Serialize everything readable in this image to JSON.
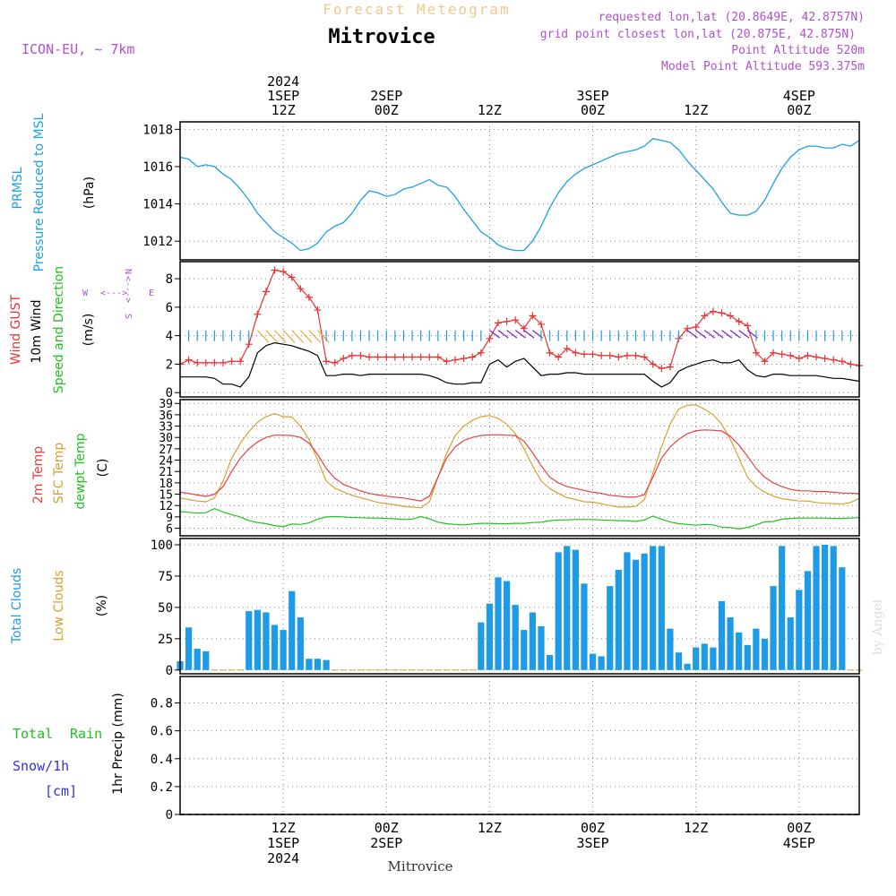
{
  "header": {
    "top_title": "Forecast Meteogram",
    "place": "Mitrovice",
    "model": "ICON-EU, ~ 7km",
    "requested": "requested lon,lat (20.8649E, 42.8757N)",
    "gridpoint": "grid point closest lon,lat (20.875E, 42.875N)",
    "point_alt": "Point Altitude 520m",
    "model_alt": "Model Point Altitude 593.375m",
    "credit": "by Angel",
    "footer_place": "Mitrovice"
  },
  "time_axis": {
    "top_labels": [
      {
        "h": 12,
        "lines": [
          "2024",
          "1SEP",
          "12Z"
        ]
      },
      {
        "h": 24,
        "lines": [
          "2SEP",
          "00Z"
        ]
      },
      {
        "h": 36,
        "lines": [
          "12Z"
        ]
      },
      {
        "h": 48,
        "lines": [
          "3SEP",
          "00Z"
        ]
      },
      {
        "h": 60,
        "lines": [
          "12Z"
        ]
      },
      {
        "h": 72,
        "lines": [
          "4SEP",
          "00Z"
        ]
      }
    ],
    "bottom_labels": [
      {
        "h": 12,
        "lines": [
          "12Z",
          "1SEP",
          "2024"
        ]
      },
      {
        "h": 24,
        "lines": [
          "00Z",
          "2SEP"
        ]
      },
      {
        "h": 36,
        "lines": [
          "12Z"
        ]
      },
      {
        "h": 48,
        "lines": [
          "00Z",
          "3SEP"
        ]
      },
      {
        "h": 60,
        "lines": [
          "12Z"
        ]
      },
      {
        "h": 72,
        "lines": [
          "00Z",
          "4SEP"
        ]
      }
    ]
  },
  "labels": {
    "p1": {
      "a": "PRMSL",
      "b": "Pressure Reduced to MSL",
      "unit": "(hPa)"
    },
    "p2": {
      "a": "Wind GUST",
      "b": "10m Wind",
      "c": "Speed and Direction",
      "unit": "(m/s)",
      "n": "N",
      "s": "S",
      "w": "W",
      "e": "E",
      "arrow_h": "<--->",
      "arrow_v": "<--->"
    },
    "p3": {
      "a": "2m Temp",
      "b": "SFC Temp",
      "c": "dewpt Temp",
      "unit": "(C)"
    },
    "p4": {
      "a": "Total Clouds",
      "b": "Low Clouds",
      "unit": "(%)"
    },
    "p5": {
      "a": "Total",
      "b": "Rain",
      "c": "Snow/1h",
      "d": "[cm]",
      "unit": "1hr Precip (mm)"
    }
  },
  "colors": {
    "pressure": "#1ea0e6",
    "gust": "#e83232",
    "wind": "#000000",
    "t2m": "#e84040",
    "sfc": "#d8a030",
    "dew": "#20c020",
    "cloud": "#1e9be6",
    "lowcloud": "#d8a030",
    "grid": "#888888",
    "purple": "#b050d0",
    "rain": "#20c020",
    "snow": "#3030e0",
    "title_faint": "#f0c890"
  },
  "chart_data": [
    {
      "type": "line",
      "name": "pressure",
      "title": "PRMSL Pressure Reduced to MSL",
      "ylabel": "(hPa)",
      "ylim": [
        1011,
        1018.4
      ],
      "yticks": [
        1012,
        1014,
        1016,
        1018
      ],
      "x_hours": [
        0,
        1,
        2,
        3,
        4,
        5,
        6,
        7,
        8,
        9,
        10,
        11,
        12,
        13,
        14,
        15,
        16,
        17,
        18,
        19,
        20,
        21,
        22,
        23,
        24,
        25,
        26,
        27,
        28,
        29,
        30,
        31,
        32,
        33,
        34,
        35,
        36,
        37,
        38,
        39,
        40,
        41,
        42,
        43,
        44,
        45,
        46,
        47,
        48,
        49,
        50,
        51,
        52,
        53,
        54,
        55,
        56,
        57,
        58,
        59,
        60,
        61,
        62,
        63,
        64,
        65,
        66,
        67,
        68,
        69,
        70,
        71,
        72,
        73,
        74,
        75,
        76,
        77,
        78,
        79
      ],
      "values": [
        1016.5,
        1016.4,
        1016.0,
        1016.1,
        1016.0,
        1015.6,
        1015.3,
        1014.8,
        1014.2,
        1013.5,
        1013.0,
        1012.5,
        1012.2,
        1011.9,
        1011.5,
        1011.6,
        1011.9,
        1012.5,
        1012.8,
        1013.0,
        1013.5,
        1014.2,
        1014.7,
        1014.6,
        1014.4,
        1014.5,
        1014.8,
        1014.9,
        1015.1,
        1015.3,
        1015.0,
        1014.9,
        1014.4,
        1013.7,
        1013.1,
        1012.5,
        1012.2,
        1011.8,
        1011.6,
        1011.5,
        1011.5,
        1012.0,
        1012.8,
        1013.8,
        1014.6,
        1015.2,
        1015.6,
        1015.9,
        1016.1,
        1016.3,
        1016.5,
        1016.7,
        1016.8,
        1016.9,
        1017.1,
        1017.5,
        1017.4,
        1017.3,
        1016.9,
        1016.3,
        1015.8,
        1015.3,
        1014.8,
        1014.1,
        1013.5,
        1013.4,
        1013.4,
        1013.6,
        1014.2,
        1015.1,
        1015.9,
        1016.5,
        1016.9,
        1017.1,
        1017.1,
        1017.0,
        1017.0,
        1017.2,
        1017.1,
        1017.4
      ]
    },
    {
      "type": "line",
      "name": "wind",
      "title": "Wind GUST / 10m Wind Speed and Direction",
      "ylabel": "(m/s)",
      "ylim": [
        -0.3,
        9.2
      ],
      "yticks": [
        0,
        2,
        4,
        6,
        8
      ],
      "x_hours": [
        0,
        1,
        2,
        3,
        4,
        5,
        6,
        7,
        8,
        9,
        10,
        11,
        12,
        13,
        14,
        15,
        16,
        17,
        18,
        19,
        20,
        21,
        22,
        23,
        24,
        25,
        26,
        27,
        28,
        29,
        30,
        31,
        32,
        33,
        34,
        35,
        36,
        37,
        38,
        39,
        40,
        41,
        42,
        43,
        44,
        45,
        46,
        47,
        48,
        49,
        50,
        51,
        52,
        53,
        54,
        55,
        56,
        57,
        58,
        59,
        60,
        61,
        62,
        63,
        64,
        65,
        66,
        67,
        68,
        69,
        70,
        71,
        72,
        73,
        74,
        75,
        76,
        77,
        78,
        79
      ],
      "series": [
        {
          "name": "Wind GUST",
          "values": [
            2.0,
            2.3,
            2.1,
            2.1,
            2.1,
            2.1,
            2.2,
            2.2,
            3.4,
            5.5,
            7.1,
            8.6,
            8.5,
            8.1,
            7.3,
            6.7,
            5.8,
            2.2,
            2.1,
            2.4,
            2.6,
            2.6,
            2.5,
            2.5,
            2.5,
            2.5,
            2.5,
            2.5,
            2.5,
            2.5,
            2.5,
            2.2,
            2.3,
            2.4,
            2.5,
            2.8,
            3.8,
            4.9,
            5.0,
            5.1,
            4.5,
            5.4,
            4.8,
            2.8,
            2.5,
            3.1,
            2.8,
            2.7,
            2.7,
            2.6,
            2.6,
            2.5,
            2.6,
            2.6,
            2.5,
            2.0,
            1.7,
            1.8,
            3.8,
            4.5,
            4.6,
            5.4,
            5.7,
            5.6,
            5.4,
            5.0,
            4.7,
            2.8,
            2.2,
            2.8,
            2.7,
            2.6,
            2.4,
            2.6,
            2.5,
            2.4,
            2.3,
            2.2,
            2.0,
            1.9
          ]
        },
        {
          "name": "10m Wind",
          "values": [
            1.1,
            1.1,
            1.1,
            1.1,
            1.0,
            0.6,
            0.6,
            0.4,
            1.1,
            2.8,
            3.3,
            3.5,
            3.4,
            3.3,
            3.1,
            2.9,
            2.6,
            1.2,
            1.2,
            1.3,
            1.3,
            1.2,
            1.3,
            1.3,
            1.3,
            1.3,
            1.3,
            1.3,
            1.3,
            1.2,
            1.0,
            0.7,
            0.6,
            0.6,
            0.7,
            0.7,
            2.0,
            2.3,
            1.8,
            2.2,
            2.4,
            1.8,
            1.2,
            1.3,
            1.3,
            1.4,
            1.4,
            1.3,
            1.3,
            1.3,
            1.3,
            1.3,
            1.3,
            1.3,
            1.3,
            0.8,
            0.4,
            0.7,
            1.5,
            1.8,
            2.0,
            2.2,
            2.3,
            2.1,
            2.1,
            2.3,
            1.6,
            1.2,
            1.1,
            1.3,
            1.3,
            1.2,
            1.2,
            1.2,
            1.2,
            1.1,
            1.0,
            1.0,
            0.9,
            0.8
          ]
        }
      ]
    },
    {
      "type": "line",
      "name": "temperature",
      "title": "2m Temp / SFC Temp / dewpt Temp",
      "ylabel": "(C)",
      "ylim": [
        4,
        40
      ],
      "yticks": [
        6,
        9,
        12,
        15,
        18,
        21,
        24,
        27,
        30,
        33,
        36,
        39
      ],
      "x_hours": [
        0,
        1,
        2,
        3,
        4,
        5,
        6,
        7,
        8,
        9,
        10,
        11,
        12,
        13,
        14,
        15,
        16,
        17,
        18,
        19,
        20,
        21,
        22,
        23,
        24,
        25,
        26,
        27,
        28,
        29,
        30,
        31,
        32,
        33,
        34,
        35,
        36,
        37,
        38,
        39,
        40,
        41,
        42,
        43,
        44,
        45,
        46,
        47,
        48,
        49,
        50,
        51,
        52,
        53,
        54,
        55,
        56,
        57,
        58,
        59,
        60,
        61,
        62,
        63,
        64,
        65,
        66,
        67,
        68,
        69,
        70,
        71,
        72,
        73,
        74,
        75,
        76,
        77,
        78,
        79
      ],
      "series": [
        {
          "name": "2m Temp",
          "values": [
            15.5,
            15.2,
            14.8,
            14.4,
            15.0,
            17.0,
            21.0,
            24.5,
            27.0,
            28.8,
            30.0,
            30.6,
            30.6,
            30.5,
            30.0,
            28.5,
            25.5,
            21.8,
            19.2,
            17.6,
            16.7,
            15.9,
            15.2,
            14.8,
            14.5,
            14.2,
            14.0,
            13.6,
            13.2,
            14.5,
            19.5,
            24.5,
            27.5,
            29.2,
            30.0,
            30.5,
            30.7,
            30.7,
            30.6,
            30.5,
            29.0,
            26.0,
            22.5,
            19.5,
            18.0,
            17.0,
            16.5,
            16.0,
            15.5,
            15.2,
            14.7,
            14.5,
            14.2,
            14.2,
            14.9,
            19.5,
            24.5,
            27.5,
            29.5,
            31.0,
            31.8,
            32.0,
            31.9,
            31.7,
            30.3,
            28.0,
            25.0,
            21.8,
            19.5,
            18.0,
            17.0,
            16.3,
            15.9,
            15.9,
            15.7,
            15.7,
            15.5,
            15.3,
            15.3,
            15.1
          ]
        },
        {
          "name": "SFC Temp",
          "values": [
            14.0,
            13.6,
            13.2,
            13.0,
            14.0,
            18.5,
            24.5,
            28.5,
            31.5,
            34.0,
            35.5,
            36.3,
            35.5,
            35.4,
            33.0,
            29.5,
            24.0,
            18.5,
            16.6,
            15.6,
            14.7,
            14.1,
            13.5,
            12.8,
            12.5,
            12.2,
            11.8,
            11.6,
            11.4,
            13.0,
            19.5,
            25.8,
            30.5,
            33.0,
            34.5,
            35.5,
            35.8,
            35.0,
            33.5,
            31.0,
            27.0,
            22.5,
            18.5,
            16.5,
            15.2,
            14.1,
            13.6,
            13.0,
            12.9,
            12.5,
            12.0,
            11.6,
            11.6,
            11.8,
            13.5,
            20.5,
            27.5,
            33.5,
            37.5,
            38.5,
            38.6,
            37.5,
            36.0,
            33.5,
            29.5,
            24.5,
            19.5,
            17.0,
            15.5,
            14.5,
            13.8,
            13.5,
            13.2,
            13.2,
            12.8,
            12.6,
            12.5,
            12.4,
            12.8,
            13.9
          ]
        },
        {
          "name": "dewpt Temp",
          "values": [
            10.4,
            10.2,
            10.0,
            10.1,
            11.2,
            10.3,
            9.6,
            9.0,
            8.0,
            7.5,
            7.2,
            6.7,
            6.4,
            7.1,
            7.0,
            7.4,
            8.4,
            9.0,
            9.1,
            9.0,
            8.8,
            8.8,
            8.7,
            8.7,
            8.6,
            8.5,
            8.3,
            8.4,
            9.1,
            8.5,
            7.6,
            7.2,
            7.0,
            6.9,
            7.1,
            7.3,
            7.3,
            7.2,
            7.2,
            7.3,
            7.3,
            7.5,
            7.6,
            8.0,
            8.2,
            8.2,
            8.3,
            8.3,
            8.3,
            8.2,
            8.1,
            8.0,
            8.0,
            7.8,
            8.2,
            9.2,
            8.4,
            7.7,
            7.2,
            7.0,
            6.8,
            7.0,
            6.9,
            6.3,
            6.2,
            5.8,
            6.2,
            6.9,
            7.7,
            7.8,
            8.4,
            8.6,
            8.7,
            8.7,
            8.7,
            8.7,
            8.6,
            8.6,
            8.7,
            8.8
          ]
        }
      ]
    },
    {
      "type": "bar",
      "name": "clouds",
      "title": "Total Clouds / Low Clouds",
      "ylabel": "(%)",
      "ylim": [
        -3,
        105
      ],
      "yticks": [
        0,
        25,
        50,
        75,
        100
      ],
      "x_hours": [
        0,
        1,
        2,
        3,
        4,
        5,
        6,
        7,
        8,
        9,
        10,
        11,
        12,
        13,
        14,
        15,
        16,
        17,
        18,
        19,
        20,
        21,
        22,
        23,
        24,
        25,
        26,
        27,
        28,
        29,
        30,
        31,
        32,
        33,
        34,
        35,
        36,
        37,
        38,
        39,
        40,
        41,
        42,
        43,
        44,
        45,
        46,
        47,
        48,
        49,
        50,
        51,
        52,
        53,
        54,
        55,
        56,
        57,
        58,
        59,
        60,
        61,
        62,
        63,
        64,
        65,
        66,
        67,
        68,
        69,
        70,
        71,
        72,
        73,
        74,
        75,
        76,
        77,
        78,
        79
      ],
      "values": [
        7,
        34,
        17,
        15,
        0,
        0,
        0,
        0,
        47,
        48,
        46,
        36,
        32,
        63,
        42,
        9,
        9,
        8,
        0,
        0,
        0,
        0,
        0,
        0,
        0,
        0,
        0,
        0,
        0,
        0,
        0,
        0,
        0,
        0,
        0,
        38,
        53,
        74,
        71,
        52,
        32,
        46,
        35,
        12,
        94,
        99,
        96,
        69,
        13,
        11,
        67,
        80,
        94,
        88,
        93,
        99,
        99,
        33,
        14,
        5,
        18,
        21,
        18,
        55,
        42,
        30,
        20,
        33,
        25,
        67,
        99,
        42,
        64,
        79,
        99,
        100,
        99,
        82,
        0,
        0
      ]
    },
    {
      "type": "bar",
      "name": "precip",
      "title": "Total Rain / Snow/1h [cm]",
      "ylabel": "1hr Precip (mm)",
      "ylim": [
        0,
        0.99
      ],
      "yticks": [
        0,
        0.2,
        0.4,
        0.6,
        0.8
      ],
      "x_hours": [
        0,
        1,
        2,
        3,
        4,
        5,
        6,
        7,
        8,
        9,
        10,
        11,
        12,
        13,
        14,
        15,
        16,
        17,
        18,
        19,
        20,
        21,
        22,
        23,
        24,
        25,
        26,
        27,
        28,
        29,
        30,
        31,
        32,
        33,
        34,
        35,
        36,
        37,
        38,
        39,
        40,
        41,
        42,
        43,
        44,
        45,
        46,
        47,
        48,
        49,
        50,
        51,
        52,
        53,
        54,
        55,
        56,
        57,
        58,
        59,
        60,
        61,
        62,
        63,
        64,
        65,
        66,
        67,
        68,
        69,
        70,
        71,
        72,
        73,
        74,
        75,
        76,
        77,
        78,
        79
      ],
      "values": [
        0,
        0,
        0,
        0,
        0,
        0,
        0,
        0,
        0,
        0,
        0,
        0,
        0,
        0,
        0,
        0,
        0,
        0,
        0,
        0,
        0,
        0,
        0,
        0,
        0,
        0,
        0,
        0,
        0,
        0,
        0,
        0,
        0,
        0,
        0,
        0,
        0,
        0,
        0,
        0,
        0,
        0,
        0,
        0,
        0,
        0,
        0,
        0,
        0,
        0,
        0,
        0,
        0,
        0,
        0,
        0,
        0,
        0,
        0,
        0,
        0,
        0,
        0,
        0,
        0,
        0,
        0,
        0,
        0,
        0,
        0,
        0,
        0,
        0,
        0,
        0,
        0,
        0,
        0,
        0
      ]
    }
  ]
}
